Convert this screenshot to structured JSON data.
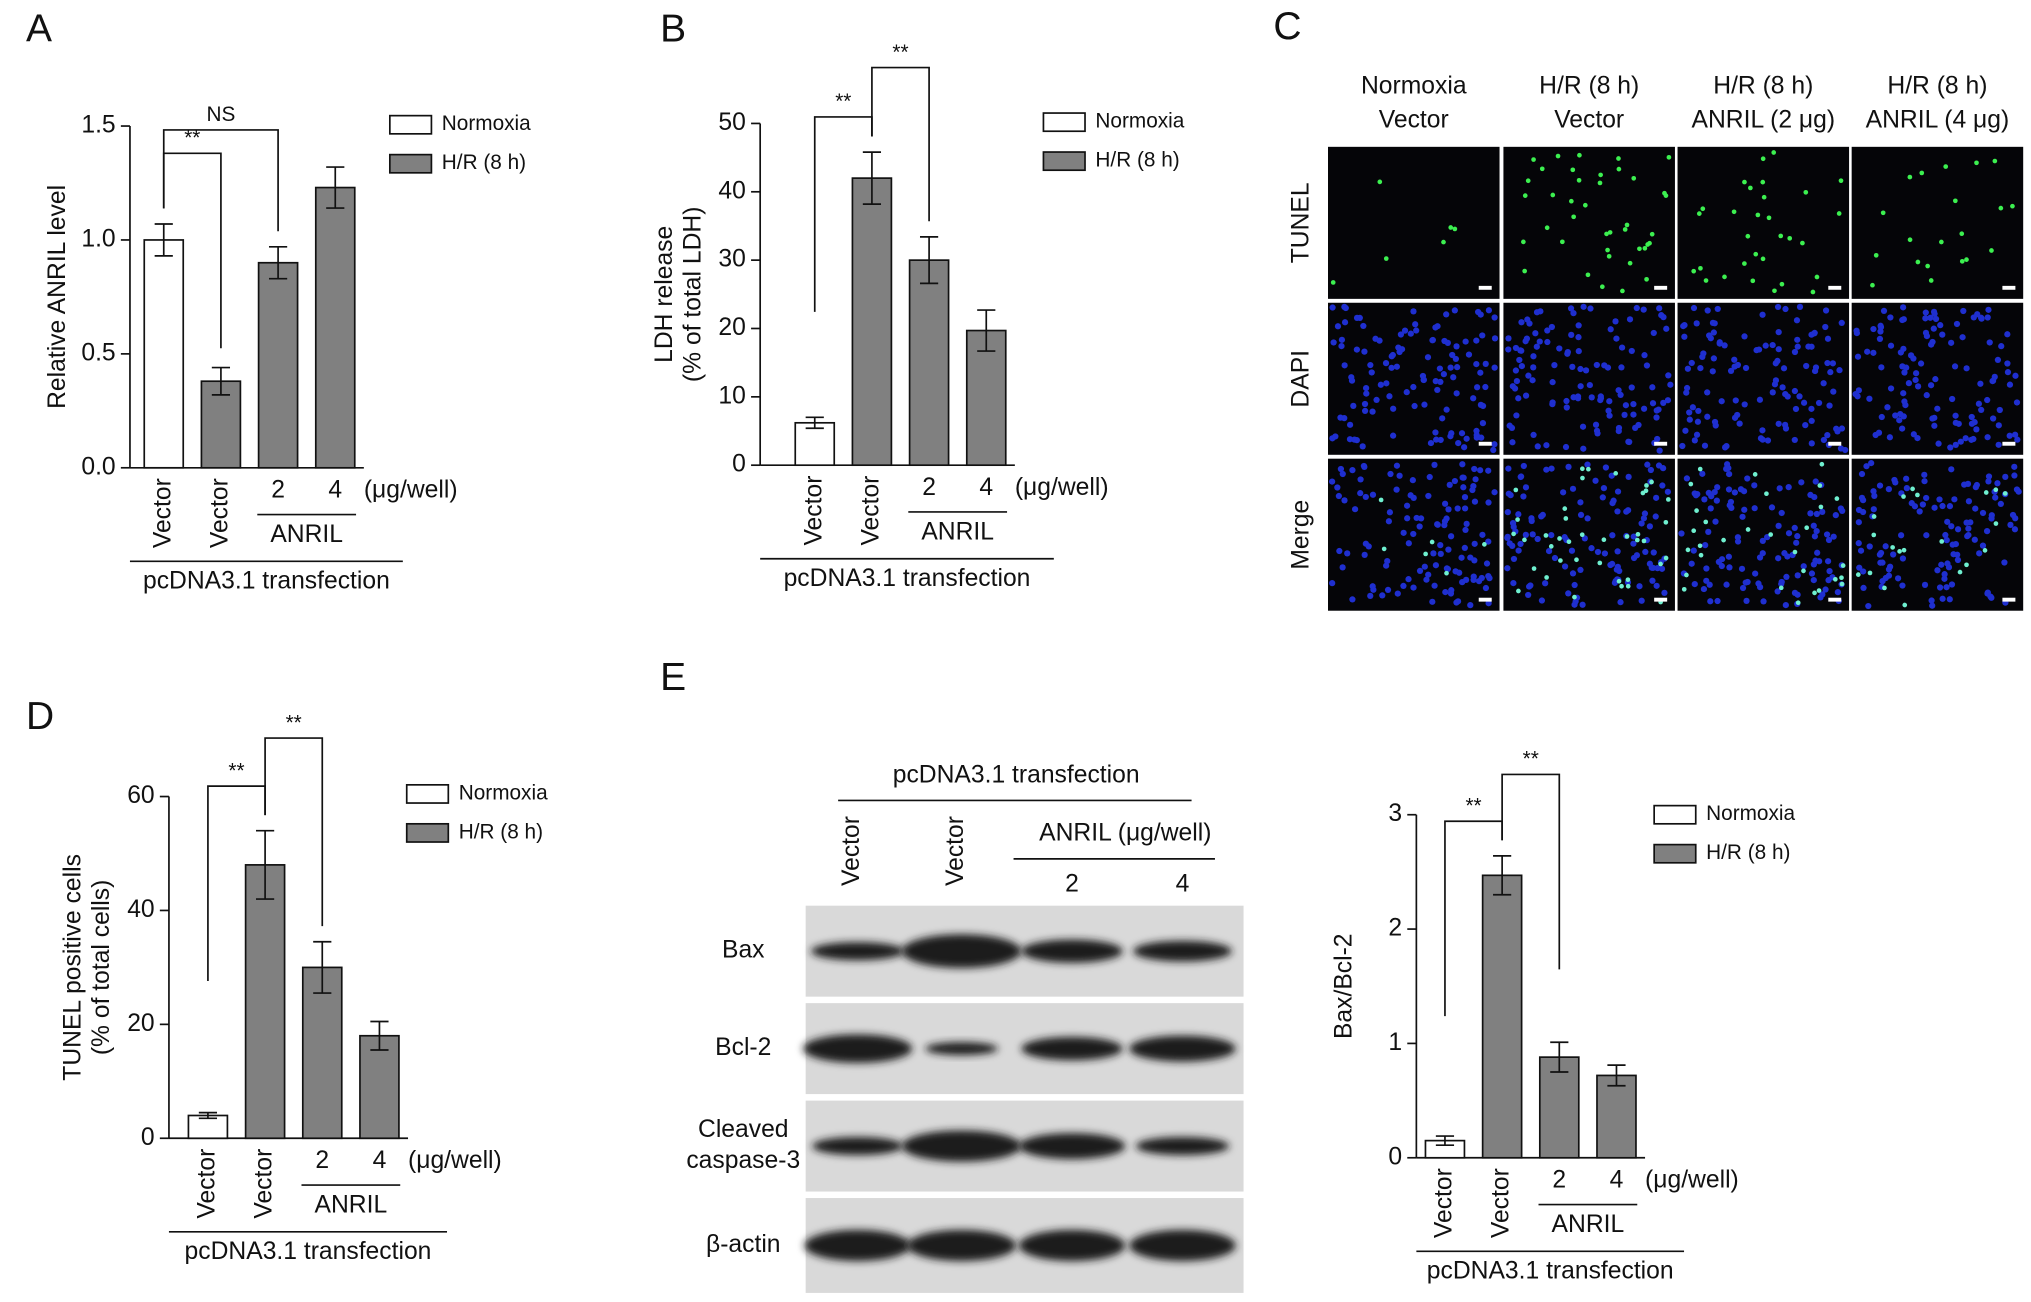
{
  "panels": [
    "A",
    "B",
    "C",
    "D",
    "E"
  ],
  "chart_data": [
    {
      "type": "bar",
      "ylabel": [
        "Relative ANRIL level"
      ],
      "categories": [
        "Vector",
        "Vector",
        "2",
        "4"
      ],
      "unit_label": "(μg/well)",
      "group_label": {
        "text": "ANRIL",
        "from": 2,
        "to": 3
      },
      "xlabel": "pcDNA3.1 transfection",
      "series": [
        {
          "name": "Normoxia",
          "color": "#ffffff",
          "values": [
            1.0,
            null,
            null,
            null
          ],
          "errors": [
            0.07,
            null,
            null,
            null
          ]
        },
        {
          "name": "H/R (8 h)",
          "color": "#808080",
          "values": [
            null,
            0.38,
            0.9,
            1.23
          ],
          "errors": [
            null,
            0.06,
            0.07,
            0.09
          ]
        }
      ],
      "ylim": [
        0,
        1.5
      ],
      "yticks": [
        {
          "value": 0,
          "label": "0.0"
        },
        0.5,
        {
          "value": 1,
          "label": "1.0"
        },
        1.5
      ],
      "annotations": [
        {
          "text": "**",
          "from": 0,
          "to": 1
        },
        {
          "text": "NS",
          "from": 0,
          "to": 2
        }
      ]
    },
    {
      "type": "bar",
      "ylabel": [
        "LDH release",
        "(% of total LDH)"
      ],
      "categories": [
        "Vector",
        "Vector",
        "2",
        "4"
      ],
      "unit_label": "(μg/well)",
      "group_label": {
        "text": "ANRIL",
        "from": 2,
        "to": 3
      },
      "xlabel": "pcDNA3.1 transfection",
      "series": [
        {
          "name": "Normoxia",
          "color": "#ffffff",
          "values": [
            6.2,
            null,
            null,
            null
          ],
          "errors": [
            0.8,
            null,
            null,
            null
          ]
        },
        {
          "name": "H/R (8 h)",
          "color": "#808080",
          "values": [
            null,
            42,
            30,
            19.7
          ],
          "errors": [
            null,
            3.8,
            3.4,
            3.0
          ]
        }
      ],
      "ylim": [
        0,
        50
      ],
      "yticks": [
        0,
        10,
        20,
        30,
        40,
        50
      ],
      "annotations": [
        {
          "text": "**",
          "from": 0,
          "to": 1
        },
        {
          "text": "**",
          "from": 1,
          "to": 2
        }
      ]
    },
    {
      "type": "bar",
      "ylabel": [
        "TUNEL positive cells",
        "(% of total cells)"
      ],
      "categories": [
        "Vector",
        "Vector",
        "2",
        "4"
      ],
      "unit_label": "(μg/well)",
      "group_label": {
        "text": "ANRIL",
        "from": 2,
        "to": 3
      },
      "xlabel": "pcDNA3.1 transfection",
      "series": [
        {
          "name": "Normoxia",
          "color": "#ffffff",
          "values": [
            4,
            null,
            null,
            null
          ],
          "errors": [
            0.5,
            null,
            null,
            null
          ]
        },
        {
          "name": "H/R (8 h)",
          "color": "#808080",
          "values": [
            null,
            48,
            30,
            18
          ],
          "errors": [
            null,
            6,
            4.5,
            2.5
          ]
        }
      ],
      "ylim": [
        0,
        60
      ],
      "yticks": [
        0,
        20,
        40,
        60
      ],
      "annotations": [
        {
          "text": "**",
          "from": 0,
          "to": 1
        },
        {
          "text": "**",
          "from": 1,
          "to": 2
        }
      ]
    },
    {
      "type": "bar",
      "ylabel": [
        "Bax/Bcl-2"
      ],
      "categories": [
        "Vector",
        "Vector",
        "2",
        "4"
      ],
      "unit_label": "(μg/well)",
      "group_label": {
        "text": "ANRIL",
        "from": 2,
        "to": 3
      },
      "xlabel": "pcDNA3.1 transfection",
      "series": [
        {
          "name": "Normoxia",
          "color": "#ffffff",
          "values": [
            0.15,
            null,
            null,
            null
          ],
          "errors": [
            0.04,
            null,
            null,
            null
          ]
        },
        {
          "name": "H/R (8 h)",
          "color": "#808080",
          "values": [
            null,
            2.47,
            0.88,
            0.72
          ],
          "errors": [
            null,
            0.17,
            0.13,
            0.09
          ]
        }
      ],
      "ylim": [
        0,
        3
      ],
      "yticks": [
        0,
        1,
        2,
        3
      ],
      "annotations": [
        {
          "text": "**",
          "from": 0,
          "to": 1
        },
        {
          "text": "**",
          "from": 1,
          "to": 2
        }
      ]
    }
  ],
  "tunel_images": {
    "columns": [
      [
        "Normoxia",
        "Vector"
      ],
      [
        "H/R (8 h)",
        "Vector"
      ],
      [
        "H/R (8 h)",
        "ANRIL (2 μg)"
      ],
      [
        "H/R (8 h)",
        "ANRIL (4 μg)"
      ]
    ],
    "rows": [
      "TUNEL",
      "DAPI",
      "Merge"
    ]
  },
  "western_blot": {
    "header": "pcDNA3.1 transfection",
    "lanes": [
      "Vector",
      "Vector"
    ],
    "group_label": "ANRIL (μg/well)",
    "doses": [
      "2",
      "4"
    ],
    "rows": [
      [
        "Bax"
      ],
      [
        "Bcl-2"
      ],
      [
        "Cleaved",
        "caspase-3"
      ],
      [
        "β-actin"
      ]
    ]
  }
}
